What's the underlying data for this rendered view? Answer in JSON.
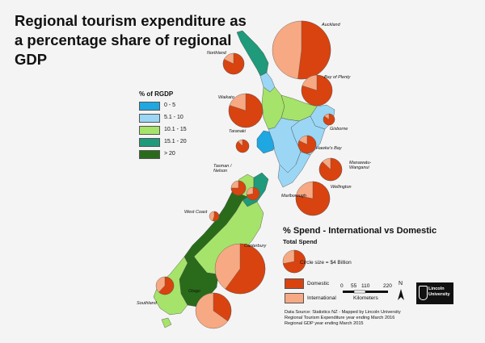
{
  "title": "Regional tourism expenditure as a percentage share of regional GDP",
  "rgdp_legend": {
    "title": "% of RGDP",
    "classes": [
      {
        "label": "0 - 5",
        "color": "#1ea7e1"
      },
      {
        "label": "5.1 - 10",
        "color": "#9bd6f5"
      },
      {
        "label": "10.1 - 15",
        "color": "#a6e36a"
      },
      {
        "label": "15.1 - 20",
        "color": "#1f9a7a"
      },
      {
        "label": "> 20",
        "color": "#2a6b1b"
      }
    ]
  },
  "spend_legend": {
    "title": "% Spend - International vs Domestic",
    "subtitle": "Total Spend",
    "circle_note": "Circle size = $4 Billion",
    "domestic_label": "Domestic",
    "domestic_color": "#d9430f",
    "international_label": "International",
    "international_color": "#f6a983"
  },
  "scale_bar": {
    "ticks": [
      "0",
      "55",
      "110",
      "220"
    ],
    "unit": "Kilometers",
    "north": "N"
  },
  "regions": [
    {
      "name": "Auckland",
      "label": "Auckland",
      "domestic_share": 0.52
    },
    {
      "name": "Northland",
      "label": "Northland",
      "domestic_share": 0.82
    },
    {
      "name": "Bay of Plenty",
      "label": "Bay of Plenty",
      "domestic_share": 0.8
    },
    {
      "name": "Waikato",
      "label": "Waikato",
      "domestic_share": 0.8
    },
    {
      "name": "Gisborne",
      "label": "Gisborne",
      "domestic_share": 0.85
    },
    {
      "name": "Taranaki",
      "label": "Taranaki",
      "domestic_share": 0.88
    },
    {
      "name": "Hawke's Bay",
      "label": "Hawke's Bay",
      "domestic_share": 0.82
    },
    {
      "name": "Manawatu-Wanganui",
      "label": "Manawatu-\nWanganui",
      "domestic_share": 0.87
    },
    {
      "name": "Wellington",
      "label": "Wellington",
      "domestic_share": 0.78
    },
    {
      "name": "Tasman / Nelson",
      "label": "Tasman /\nNelson",
      "domestic_share": 0.75
    },
    {
      "name": "Marlborough",
      "label": "Marlborough",
      "domestic_share": 0.72
    },
    {
      "name": "West Coast",
      "label": "West Coast",
      "domestic_share": 0.55
    },
    {
      "name": "Canterbury",
      "label": "Canterbury",
      "domestic_share": 0.6
    },
    {
      "name": "Southland",
      "label": "Southland",
      "domestic_share": 0.62
    },
    {
      "name": "Otago",
      "label": "Otago",
      "domestic_share": 0.35
    }
  ],
  "source": [
    "Data Source: Statistics NZ - Mapped by Lincoln University",
    "Regional Tourism Expenditure year ending March 2016",
    "Regional GDP year ending March 2015"
  ],
  "logo": {
    "line1": "Lincoln",
    "line2": "University"
  }
}
